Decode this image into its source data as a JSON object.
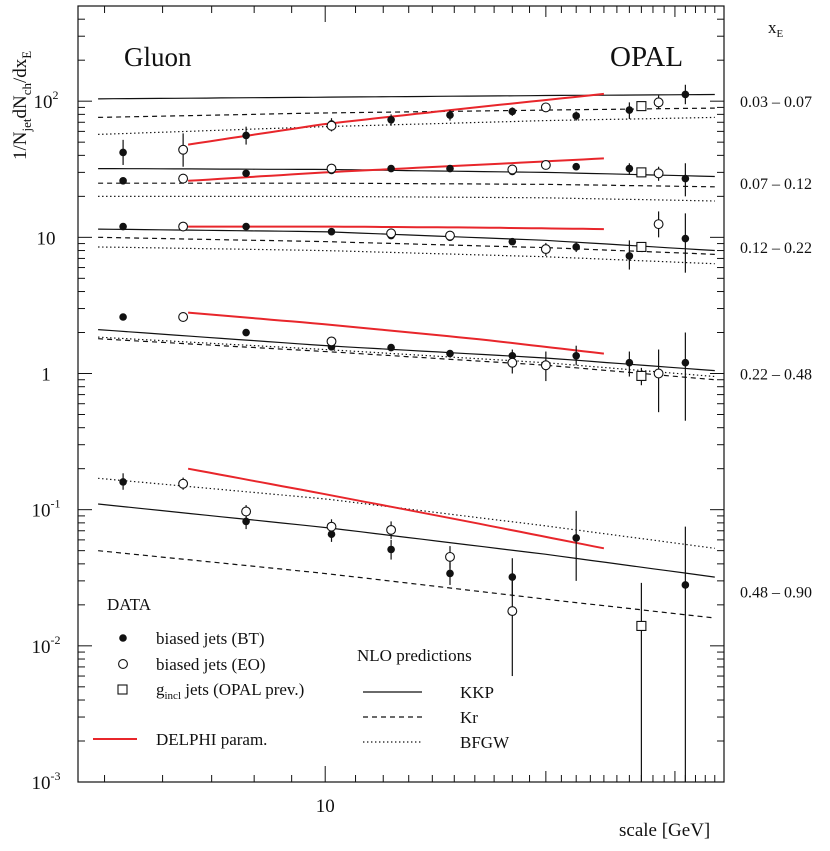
{
  "chart_data": {
    "type": "scatter",
    "title_left": "Gluon",
    "title_right": "OPAL",
    "ylabel": {
      "base": "1/N",
      "sub1": "jet",
      "mid": "dN",
      "sub2": "ch",
      "tail": "/dx",
      "sub3": "E"
    },
    "xlabel": "scale [GeV]",
    "xscale": "log",
    "yscale": "log",
    "xlim": [
      4.6,
      35
    ],
    "ylim": [
      0.001,
      500
    ],
    "x_tick_labels": [
      {
        "value": 10,
        "label": "10"
      }
    ],
    "y_tick_labels": [
      {
        "value": 100,
        "mantissa": "10",
        "exp": "2"
      },
      {
        "value": 10,
        "mantissa": "10",
        "exp": ""
      },
      {
        "value": 1,
        "mantissa": "1",
        "exp": ""
      },
      {
        "value": 0.1,
        "mantissa": "10",
        "exp": "-1"
      },
      {
        "value": 0.01,
        "mantissa": "10",
        "exp": "-2"
      },
      {
        "value": 0.001,
        "mantissa": "10",
        "exp": "-3"
      }
    ],
    "xe_header": {
      "base": "x",
      "sub": "E"
    },
    "bins": [
      {
        "label": "0.03 – 0.07",
        "y": 100
      },
      {
        "label": "0.07 – 0.12",
        "y": 25
      },
      {
        "label": "0.12 – 0.22",
        "y": 8.5
      },
      {
        "label": "0.22 – 0.48",
        "y": 1
      },
      {
        "label": "0.48 – 0.90",
        "y": 0.025
      }
    ],
    "series": [
      {
        "name": "biased jets (BT)",
        "marker": "filled-circle",
        "points": [
          {
            "x": 5.3,
            "y": 42,
            "lo": 34,
            "hi": 52
          },
          {
            "x": 7.8,
            "y": 56,
            "lo": 48,
            "hi": 65
          },
          {
            "x": 10.2,
            "y": 68,
            "lo": 62,
            "hi": 75
          },
          {
            "x": 12.3,
            "y": 73,
            "lo": 66,
            "hi": 80
          },
          {
            "x": 14.8,
            "y": 79,
            "lo": 72,
            "hi": 86
          },
          {
            "x": 18.0,
            "y": 84,
            "lo": 78,
            "hi": 90
          },
          {
            "x": 22.0,
            "y": 78,
            "lo": 72,
            "hi": 84
          },
          {
            "x": 26.0,
            "y": 86,
            "lo": 74,
            "hi": 98
          },
          {
            "x": 31.0,
            "y": 112,
            "lo": 95,
            "hi": 132
          },
          {
            "x": 5.3,
            "y": 26,
            "lo": 25,
            "hi": 27
          },
          {
            "x": 7.8,
            "y": 29.5,
            "lo": 28.5,
            "hi": 30.5
          },
          {
            "x": 10.2,
            "y": 31,
            "lo": 30,
            "hi": 32
          },
          {
            "x": 12.3,
            "y": 32,
            "lo": 31,
            "hi": 33
          },
          {
            "x": 14.8,
            "y": 32,
            "lo": 31,
            "hi": 33
          },
          {
            "x": 18.0,
            "y": 30.5,
            "lo": 29.5,
            "hi": 31.5
          },
          {
            "x": 22.0,
            "y": 33,
            "lo": 32,
            "hi": 34
          },
          {
            "x": 26.0,
            "y": 32,
            "lo": 29,
            "hi": 35
          },
          {
            "x": 31.0,
            "y": 27,
            "lo": 20,
            "hi": 35
          },
          {
            "x": 5.3,
            "y": 12,
            "lo": 11.7,
            "hi": 12.3
          },
          {
            "x": 7.8,
            "y": 12,
            "lo": 11.5,
            "hi": 12.5
          },
          {
            "x": 10.2,
            "y": 11,
            "lo": 10.5,
            "hi": 11.5
          },
          {
            "x": 12.3,
            "y": 10.3,
            "lo": 9.9,
            "hi": 10.7
          },
          {
            "x": 14.8,
            "y": 10,
            "lo": 9.6,
            "hi": 10.4
          },
          {
            "x": 18.0,
            "y": 9.3,
            "lo": 8.8,
            "hi": 9.8
          },
          {
            "x": 22.0,
            "y": 8.5,
            "lo": 7.8,
            "hi": 9.2
          },
          {
            "x": 26.0,
            "y": 7.3,
            "lo": 5.8,
            "hi": 9.5
          },
          {
            "x": 31.0,
            "y": 9.8,
            "lo": 5.5,
            "hi": 15
          },
          {
            "x": 5.3,
            "y": 2.6,
            "lo": 2.5,
            "hi": 2.7
          },
          {
            "x": 7.8,
            "y": 2.0,
            "lo": 1.9,
            "hi": 2.1
          },
          {
            "x": 10.2,
            "y": 1.57,
            "lo": 1.5,
            "hi": 1.64
          },
          {
            "x": 12.3,
            "y": 1.55,
            "lo": 1.48,
            "hi": 1.62
          },
          {
            "x": 14.8,
            "y": 1.4,
            "lo": 1.33,
            "hi": 1.47
          },
          {
            "x": 18.0,
            "y": 1.35,
            "lo": 1.2,
            "hi": 1.5
          },
          {
            "x": 22.0,
            "y": 1.35,
            "lo": 1.15,
            "hi": 1.6
          },
          {
            "x": 26.0,
            "y": 1.2,
            "lo": 0.95,
            "hi": 1.45
          },
          {
            "x": 31.0,
            "y": 1.2,
            "lo": 0.45,
            "hi": 2.0
          },
          {
            "x": 5.3,
            "y": 0.16,
            "lo": 0.14,
            "hi": 0.185
          },
          {
            "x": 7.8,
            "y": 0.082,
            "lo": 0.072,
            "hi": 0.093
          },
          {
            "x": 10.2,
            "y": 0.066,
            "lo": 0.058,
            "hi": 0.075
          },
          {
            "x": 12.3,
            "y": 0.051,
            "lo": 0.043,
            "hi": 0.06
          },
          {
            "x": 14.8,
            "y": 0.034,
            "lo": 0.028,
            "hi": 0.041
          },
          {
            "x": 18.0,
            "y": 0.032,
            "lo": 0.023,
            "hi": 0.044
          },
          {
            "x": 22.0,
            "y": 0.062,
            "lo": 0.03,
            "hi": 0.098
          },
          {
            "x": 31.0,
            "y": 0.028,
            "lo": 0.001,
            "hi": 0.075
          }
        ]
      },
      {
        "name": "biased jets (EO)",
        "marker": "open-circle",
        "points": [
          {
            "x": 6.4,
            "y": 44,
            "lo": 33,
            "hi": 58
          },
          {
            "x": 10.2,
            "y": 66,
            "lo": 60,
            "hi": 72
          },
          {
            "x": 20.0,
            "y": 90,
            "lo": 85,
            "hi": 95
          },
          {
            "x": 28.5,
            "y": 98,
            "lo": 88,
            "hi": 110
          },
          {
            "x": 6.4,
            "y": 27,
            "lo": 26,
            "hi": 28
          },
          {
            "x": 10.2,
            "y": 32,
            "lo": 31,
            "hi": 33
          },
          {
            "x": 18.0,
            "y": 31.5,
            "lo": 30.5,
            "hi": 32.5
          },
          {
            "x": 20.0,
            "y": 34,
            "lo": 32,
            "hi": 36
          },
          {
            "x": 28.5,
            "y": 29.5,
            "lo": 26,
            "hi": 33
          },
          {
            "x": 6.4,
            "y": 12,
            "lo": 11.7,
            "hi": 12.3
          },
          {
            "x": 12.3,
            "y": 10.7,
            "lo": 10.3,
            "hi": 11.1
          },
          {
            "x": 14.8,
            "y": 10.3,
            "lo": 9.9,
            "hi": 10.7
          },
          {
            "x": 20.0,
            "y": 8.2,
            "lo": 7.3,
            "hi": 9.1
          },
          {
            "x": 28.5,
            "y": 12.5,
            "lo": 10,
            "hi": 15.5
          },
          {
            "x": 6.4,
            "y": 2.6,
            "lo": 2.5,
            "hi": 2.7
          },
          {
            "x": 10.2,
            "y": 1.72,
            "lo": 1.65,
            "hi": 1.8
          },
          {
            "x": 18.0,
            "y": 1.2,
            "lo": 1.0,
            "hi": 1.4
          },
          {
            "x": 20.0,
            "y": 1.15,
            "lo": 0.88,
            "hi": 1.45
          },
          {
            "x": 28.5,
            "y": 1.0,
            "lo": 0.52,
            "hi": 1.5
          },
          {
            "x": 6.4,
            "y": 0.155,
            "lo": 0.14,
            "hi": 0.172
          },
          {
            "x": 7.8,
            "y": 0.097,
            "lo": 0.087,
            "hi": 0.108
          },
          {
            "x": 10.2,
            "y": 0.075,
            "lo": 0.066,
            "hi": 0.085
          },
          {
            "x": 12.3,
            "y": 0.071,
            "lo": 0.061,
            "hi": 0.082
          },
          {
            "x": 14.8,
            "y": 0.045,
            "lo": 0.037,
            "hi": 0.054
          },
          {
            "x": 18.0,
            "y": 0.018,
            "lo": 0.006,
            "hi": 0.03
          }
        ]
      },
      {
        "name_prefix": "g",
        "name_sub": "incl",
        "name_suffix": " jets (OPAL prev.)",
        "marker": "open-square",
        "points": [
          {
            "x": 27.0,
            "y": 92,
            "lo": 86,
            "hi": 98
          },
          {
            "x": 27.0,
            "y": 30,
            "lo": 28.5,
            "hi": 31.5
          },
          {
            "x": 27.0,
            "y": 8.5,
            "lo": 7.8,
            "hi": 9.2
          },
          {
            "x": 27.0,
            "y": 0.96,
            "lo": 0.82,
            "hi": 1.1
          },
          {
            "x": 27.0,
            "y": 0.014,
            "lo": 0.001,
            "hi": 0.029
          }
        ]
      }
    ],
    "curves": [
      {
        "name": "KKP",
        "style": "solid",
        "color": "#111111",
        "lines": [
          [
            [
              4.9,
              104
            ],
            [
              10,
              107
            ],
            [
              20,
              110
            ],
            [
              34,
              112
            ]
          ],
          [
            [
              4.9,
              32
            ],
            [
              10,
              31.5
            ],
            [
              20,
              30
            ],
            [
              34,
              28
            ]
          ],
          [
            [
              4.9,
              11.5
            ],
            [
              10,
              11
            ],
            [
              20,
              9.5
            ],
            [
              34,
              8
            ]
          ],
          [
            [
              4.9,
              2.1
            ],
            [
              10,
              1.6
            ],
            [
              20,
              1.3
            ],
            [
              34,
              1.05
            ]
          ],
          [
            [
              4.9,
              0.11
            ],
            [
              10,
              0.074
            ],
            [
              20,
              0.047
            ],
            [
              34,
              0.032
            ]
          ]
        ]
      },
      {
        "name": "Kr",
        "style": "dashed",
        "color": "#111111",
        "lines": [
          [
            [
              4.9,
              76
            ],
            [
              10,
              82
            ],
            [
              20,
              86
            ],
            [
              34,
              89
            ]
          ],
          [
            [
              4.9,
              25
            ],
            [
              10,
              25
            ],
            [
              20,
              24.5
            ],
            [
              34,
              23.5
            ]
          ],
          [
            [
              4.9,
              10
            ],
            [
              10,
              9.3
            ],
            [
              20,
              8.4
            ],
            [
              34,
              7.5
            ]
          ],
          [
            [
              4.9,
              1.8
            ],
            [
              10,
              1.45
            ],
            [
              20,
              1.15
            ],
            [
              34,
              0.9
            ]
          ],
          [
            [
              4.9,
              0.05
            ],
            [
              10,
              0.034
            ],
            [
              20,
              0.022
            ],
            [
              34,
              0.016
            ]
          ]
        ]
      },
      {
        "name": "BFGW",
        "style": "dotted",
        "color": "#111111",
        "lines": [
          [
            [
              4.9,
              57
            ],
            [
              10,
              65
            ],
            [
              20,
              72
            ],
            [
              34,
              76
            ]
          ],
          [
            [
              4.9,
              20
            ],
            [
              10,
              20
            ],
            [
              20,
              19.5
            ],
            [
              34,
              18.5
            ]
          ],
          [
            [
              4.9,
              8.5
            ],
            [
              10,
              8
            ],
            [
              20,
              7.2
            ],
            [
              34,
              6.4
            ]
          ],
          [
            [
              4.9,
              1.85
            ],
            [
              10,
              1.5
            ],
            [
              20,
              1.2
            ],
            [
              34,
              0.95
            ]
          ],
          [
            [
              4.9,
              0.17
            ],
            [
              10,
              0.12
            ],
            [
              20,
              0.076
            ],
            [
              34,
              0.052
            ]
          ]
        ]
      },
      {
        "name": "DELPHI param.",
        "style": "solid",
        "color": "#e8262b",
        "lines": [
          [
            [
              6.5,
              48
            ],
            [
              10,
              68
            ],
            [
              16,
              90
            ],
            [
              24,
              113
            ]
          ],
          [
            [
              6.5,
              26
            ],
            [
              10,
              30
            ],
            [
              16,
              34
            ],
            [
              24,
              38
            ]
          ],
          [
            [
              6.5,
              12
            ],
            [
              10,
              12
            ],
            [
              16,
              11.8
            ],
            [
              24,
              11.5
            ]
          ],
          [
            [
              6.5,
              2.8
            ],
            [
              10,
              2.3
            ],
            [
              16,
              1.8
            ],
            [
              24,
              1.4
            ]
          ],
          [
            [
              6.5,
              0.2
            ],
            [
              10,
              0.13
            ],
            [
              16,
              0.08
            ],
            [
              24,
              0.052
            ]
          ]
        ]
      }
    ],
    "legend": {
      "data_header": "DATA",
      "nlo_header": "NLO predictions"
    }
  }
}
